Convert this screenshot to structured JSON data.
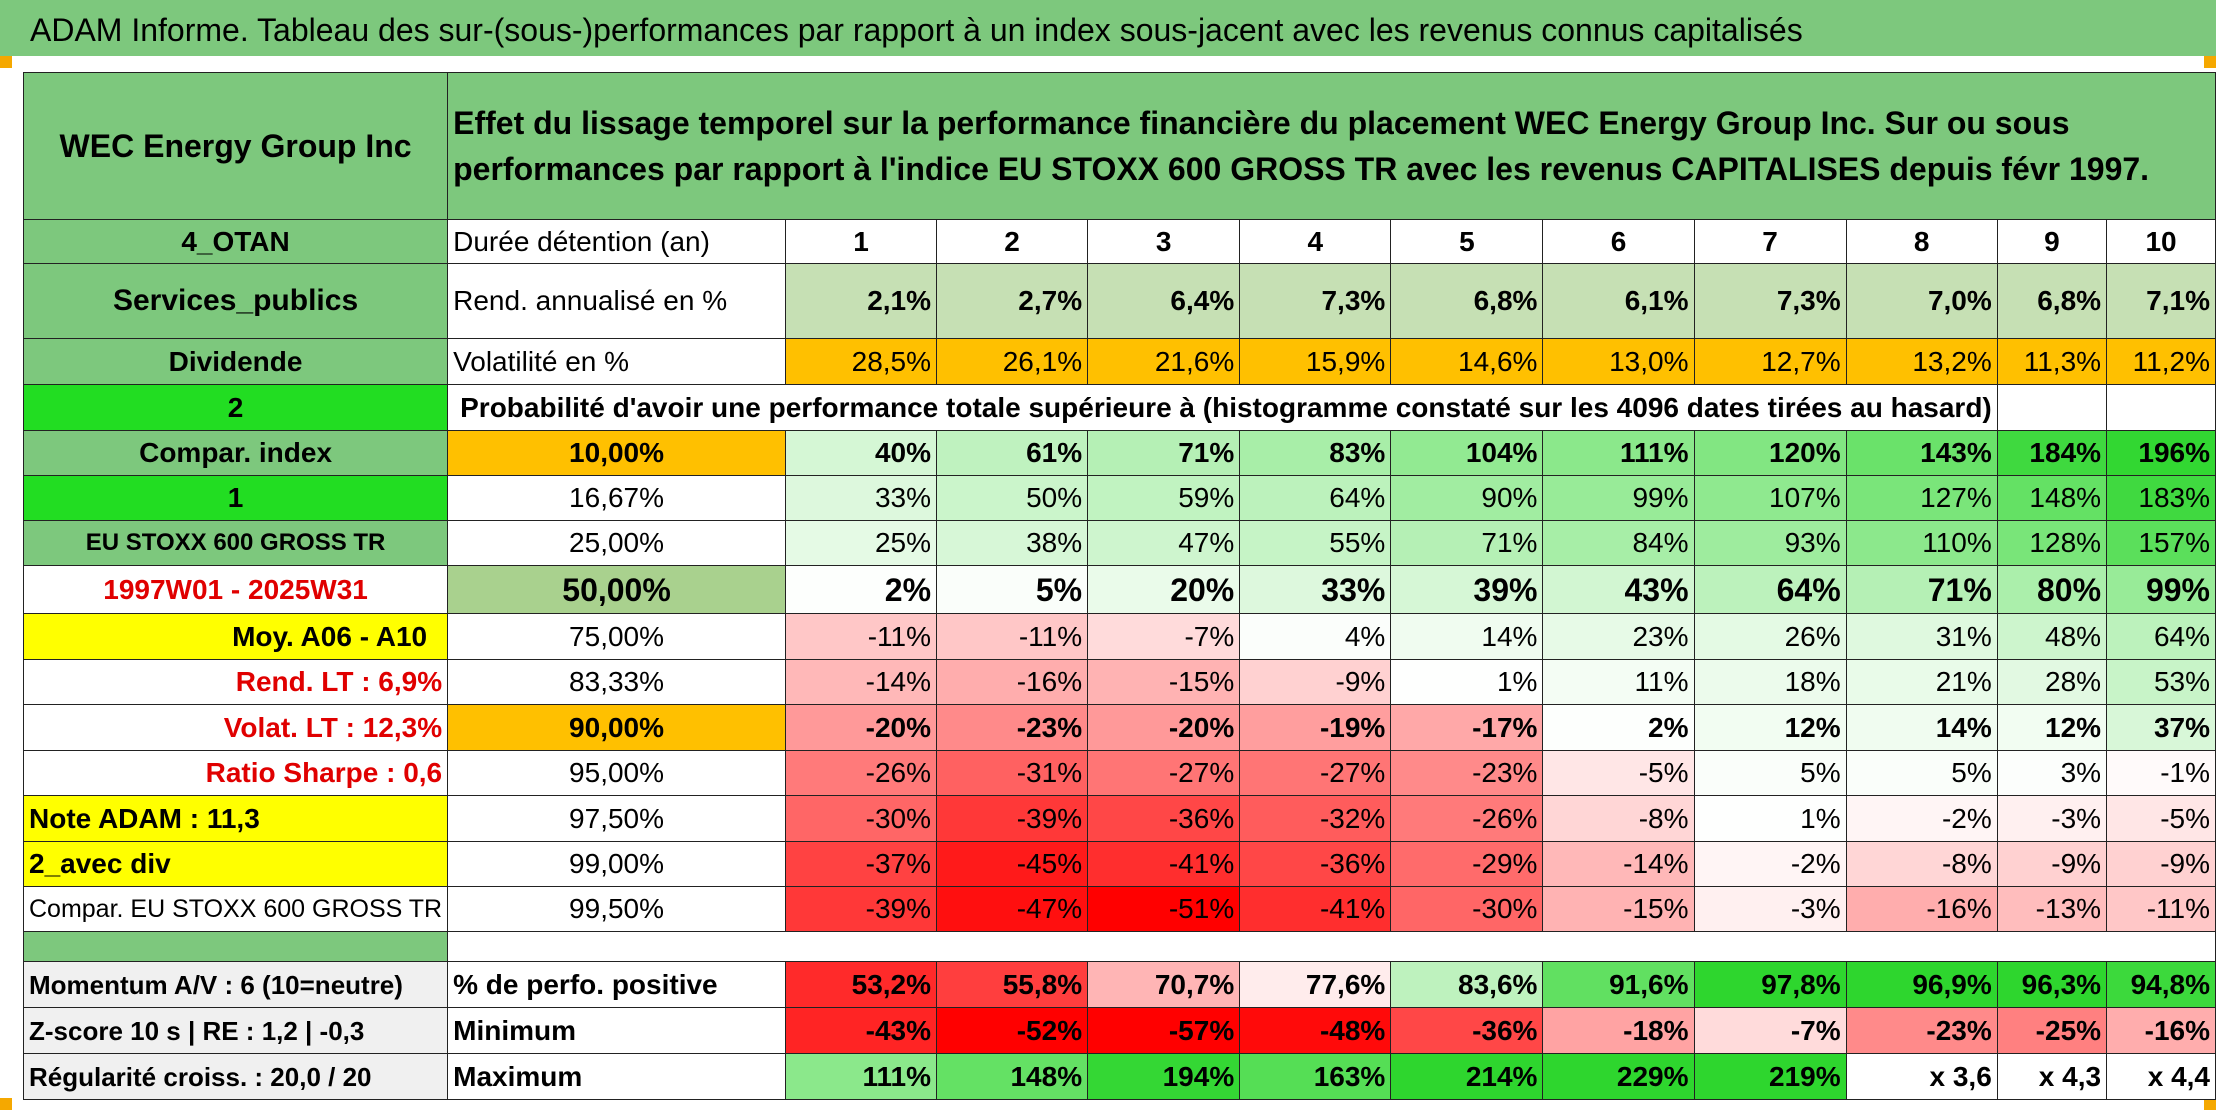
{
  "title": "ADAM Informe. Tableau des sur-(sous-)performances par rapport à un index sous-jacent avec les revenus connus capitalisés",
  "company": "WEC Energy Group Inc",
  "description": "Effet du lissage temporel sur la performance financière du placement WEC Energy Group Inc. Sur ou sous performances par rapport à l'indice EU STOXX 600 GROSS TR avec les revenus CAPITALISES depuis févr 1997.",
  "left_labels": {
    "code": "4_OTAN",
    "sector": "Services_publics",
    "dividend": "Dividende",
    "mode": "2",
    "compar_index": "Compar. index",
    "one": "1",
    "index_name": "EU STOXX 600 GROSS TR",
    "period": "1997W01 - 2025W31",
    "moy": "Moy. A06 - A10",
    "rend_lt": "Rend. LT :   6,9%",
    "volat_lt": "Volat. LT :   12,3%",
    "sharpe": "Ratio Sharpe :   0,6",
    "note": "Note ADAM : 11,3",
    "avec_div": "2_avec div",
    "compar_full": "Compar. EU STOXX 600 GROSS TR",
    "momentum": "Momentum A/V : 6 (10=neutre)",
    "zscore": "Z-score 10 s | RE : 1,2 | -0,3",
    "regularite": "Régularité croiss. : 20,0 / 20"
  },
  "header": {
    "duration_label": "Durée détention (an)",
    "years": [
      "1",
      "2",
      "3",
      "4",
      "5",
      "6",
      "7",
      "8",
      "9",
      "10"
    ]
  },
  "rend": {
    "label": "Rend. annualisé en %",
    "values": [
      "2,1%",
      "2,7%",
      "6,4%",
      "7,3%",
      "6,8%",
      "6,1%",
      "7,3%",
      "7,0%",
      "6,8%",
      "7,1%"
    ]
  },
  "vol": {
    "label": "Volatilité en %",
    "values": [
      "28,5%",
      "26,1%",
      "21,6%",
      "15,9%",
      "14,6%",
      "13,0%",
      "12,7%",
      "13,2%",
      "11,3%",
      "11,2%"
    ]
  },
  "probability_text": "Probabilité d'avoir une performance totale supérieure à (histogramme constaté sur les 4096 dates tirées au hasard)",
  "percentile_rows": [
    {
      "p": "10,00%",
      "values": [
        "40%",
        "61%",
        "71%",
        "83%",
        "104%",
        "111%",
        "120%",
        "143%",
        "184%",
        "196%"
      ]
    },
    {
      "p": "16,67%",
      "values": [
        "33%",
        "50%",
        "59%",
        "64%",
        "90%",
        "99%",
        "107%",
        "127%",
        "148%",
        "183%"
      ]
    },
    {
      "p": "25,00%",
      "values": [
        "25%",
        "38%",
        "47%",
        "55%",
        "71%",
        "84%",
        "93%",
        "110%",
        "128%",
        "157%"
      ]
    },
    {
      "p": "50,00%",
      "values": [
        "2%",
        "5%",
        "20%",
        "33%",
        "39%",
        "43%",
        "64%",
        "71%",
        "80%",
        "99%"
      ]
    },
    {
      "p": "75,00%",
      "values": [
        "-11%",
        "-11%",
        "-7%",
        "4%",
        "14%",
        "23%",
        "26%",
        "31%",
        "48%",
        "64%"
      ]
    },
    {
      "p": "83,33%",
      "values": [
        "-14%",
        "-16%",
        "-15%",
        "-9%",
        "1%",
        "11%",
        "18%",
        "21%",
        "28%",
        "53%"
      ]
    },
    {
      "p": "90,00%",
      "values": [
        "-20%",
        "-23%",
        "-20%",
        "-19%",
        "-17%",
        "2%",
        "12%",
        "14%",
        "12%",
        "37%"
      ]
    },
    {
      "p": "95,00%",
      "values": [
        "-26%",
        "-31%",
        "-27%",
        "-27%",
        "-23%",
        "-5%",
        "5%",
        "5%",
        "3%",
        "-1%"
      ]
    },
    {
      "p": "97,50%",
      "values": [
        "-30%",
        "-39%",
        "-36%",
        "-32%",
        "-26%",
        "-8%",
        "1%",
        "-2%",
        "-3%",
        "-5%"
      ]
    },
    {
      "p": "99,00%",
      "values": [
        "-37%",
        "-45%",
        "-41%",
        "-36%",
        "-29%",
        "-14%",
        "-2%",
        "-8%",
        "-9%",
        "-9%"
      ]
    },
    {
      "p": "99,50%",
      "values": [
        "-39%",
        "-47%",
        "-51%",
        "-41%",
        "-30%",
        "-15%",
        "-3%",
        "-16%",
        "-13%",
        "-11%"
      ]
    }
  ],
  "stats": [
    {
      "label": "% de perfo. positive",
      "values": [
        "53,2%",
        "55,8%",
        "70,7%",
        "77,6%",
        "83,6%",
        "91,6%",
        "97,8%",
        "96,9%",
        "96,3%",
        "94,8%"
      ]
    },
    {
      "label": "Minimum",
      "values": [
        "-43%",
        "-52%",
        "-57%",
        "-48%",
        "-36%",
        "-18%",
        "-7%",
        "-23%",
        "-25%",
        "-16%"
      ]
    },
    {
      "label": "Maximum",
      "values": [
        "111%",
        "148%",
        "194%",
        "163%",
        "214%",
        "229%",
        "219%",
        "x 3,6",
        "x 4,3",
        "x 4,4"
      ]
    }
  ],
  "colors": {
    "title_green": "#7dc87d",
    "label_green": "#7dc87d",
    "bright_green": "#22dd22",
    "yellow": "#ffff00",
    "orange": "#ffc000",
    "red_text": "#e00000",
    "rend_green": "#c6e0b4"
  }
}
